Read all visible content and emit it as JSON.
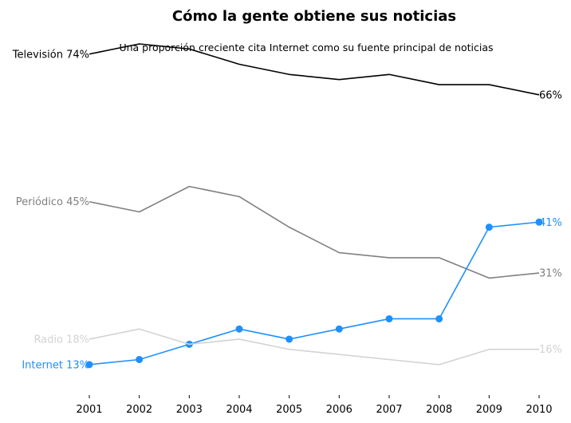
{
  "chart_data": {
    "type": "line",
    "title": "Cómo la gente obtiene sus noticias",
    "subtitle": "Una proporción creciente cita Internet como su fuente principal de noticias",
    "x": [
      2001,
      2002,
      2003,
      2004,
      2005,
      2006,
      2007,
      2008,
      2009,
      2010
    ],
    "x_tick_labels": [
      "2001",
      "2002",
      "2003",
      "2004",
      "2005",
      "2006",
      "2007",
      "2008",
      "2009",
      "2010"
    ],
    "ylim": [
      10,
      76
    ],
    "grid": false,
    "series": [
      {
        "name": "Televisión",
        "start_label": "Televisión 74%",
        "end_label": "66%",
        "color": "#000000",
        "markers": false,
        "values": [
          74,
          76,
          75,
          72,
          70,
          69,
          70,
          68,
          68,
          66
        ]
      },
      {
        "name": "Periódico",
        "start_label": "Periódico 45%",
        "end_label": "31%",
        "color": "#808080",
        "markers": false,
        "values": [
          45,
          43,
          48,
          46,
          40,
          35,
          34,
          34,
          30,
          31
        ]
      },
      {
        "name": "Internet",
        "start_label": "Internet 13%",
        "end_label": "41%",
        "color": "#1e90ff",
        "markers": true,
        "values": [
          13,
          14,
          17,
          20,
          18,
          20,
          22,
          22,
          40,
          41
        ]
      },
      {
        "name": "Radio",
        "start_label": "Radio 18%",
        "end_label": "16%",
        "color": "#d3d3d3",
        "markers": false,
        "values": [
          18,
          20,
          17,
          18,
          16,
          15,
          14,
          13,
          16,
          16
        ]
      }
    ]
  }
}
